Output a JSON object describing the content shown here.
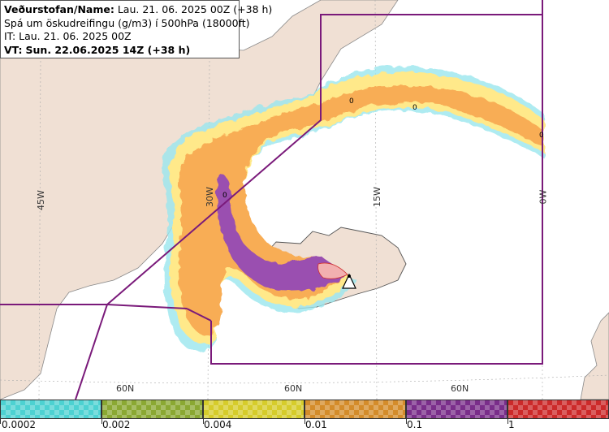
{
  "info": {
    "line1_label": "Veðurstofan/Name:",
    "line1_value": "Lau. 21. 06. 2025 00Z (+38 h)",
    "line2": "Spá um öskudreifingu (g/m3) í 500hPa (18000ft)",
    "line3": "IT: Lau. 21. 06. 2025 00Z",
    "line4_label": "VT:",
    "line4_value": "Sun. 22.06.2025 14Z (+38 h)"
  },
  "grid": {
    "lon_labels": [
      "45W",
      "30W",
      "15W",
      "0W"
    ],
    "lat_labels": [
      "60N",
      "60N",
      "60N"
    ]
  },
  "contour_labels": [
    "0",
    "0",
    "0",
    "0"
  ],
  "legend": {
    "colors": [
      "#4dd2d2",
      "#8aa832",
      "#d6cc2a",
      "#d48c2a",
      "#7a2e8a",
      "#cc2a2a"
    ],
    "values": [
      "0.0002",
      "0.002",
      "0.004",
      "0.01",
      "0.1",
      "1"
    ]
  },
  "colors": {
    "land": "#f0e0d4",
    "sea": "#ffffff",
    "boundary": "#7a1a7a",
    "ash_light": "#ffe98a",
    "ash_orange": "#f8ad55",
    "ash_purple": "#9a50b0",
    "ash_cyan": "#9ae6ee"
  }
}
